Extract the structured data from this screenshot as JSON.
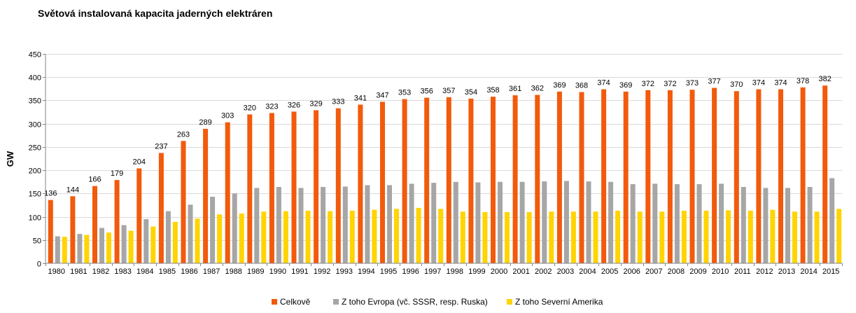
{
  "chart_data": {
    "type": "bar",
    "title": "Světová instalovaná kapacita jaderných elektráren",
    "xlabel": "",
    "ylabel": "GW",
    "ylim": [
      0,
      450
    ],
    "yticks": [
      0,
      50,
      100,
      150,
      200,
      250,
      300,
      350,
      400,
      450
    ],
    "grid": true,
    "legend_position": "bottom",
    "categories": [
      "1980",
      "1981",
      "1982",
      "1983",
      "1984",
      "1985",
      "1986",
      "1987",
      "1988",
      "1989",
      "1990",
      "1991",
      "1992",
      "1993",
      "1994",
      "1995",
      "1996",
      "1997",
      "1998",
      "1999",
      "2000",
      "2001",
      "2002",
      "2003",
      "2004",
      "2005",
      "2006",
      "2007",
      "2008",
      "2009",
      "2010",
      "2011",
      "2012",
      "2013",
      "2014",
      "2015"
    ],
    "series": [
      {
        "name": "Celkově",
        "color": "#f25a0c",
        "values": [
          136,
          144,
          166,
          179,
          204,
          237,
          263,
          289,
          303,
          320,
          323,
          326,
          329,
          333,
          341,
          347,
          353,
          356,
          357,
          354,
          358,
          361,
          362,
          369,
          368,
          374,
          369,
          372,
          372,
          373,
          377,
          370,
          374,
          374,
          378,
          382
        ],
        "labeled": true
      },
      {
        "name": "Z toho Evropa (vč. SSSR, resp. Ruska)",
        "color": "#a6a6a6",
        "values": [
          58,
          63,
          76,
          82,
          95,
          112,
          126,
          143,
          150,
          162,
          164,
          162,
          164,
          165,
          168,
          168,
          171,
          173,
          175,
          174,
          175,
          175,
          176,
          177,
          176,
          175,
          170,
          171,
          170,
          170,
          171,
          164,
          162,
          162,
          164,
          183
        ]
      },
      {
        "name": "Z toho Severní Amerika",
        "color": "#ffd400",
        "values": [
          57,
          61,
          66,
          70,
          79,
          89,
          96,
          105,
          107,
          111,
          112,
          113,
          112,
          113,
          115,
          117,
          119,
          117,
          111,
          110,
          110,
          110,
          111,
          111,
          111,
          113,
          111,
          111,
          113,
          113,
          114,
          113,
          115,
          111,
          111,
          117
        ]
      }
    ]
  }
}
